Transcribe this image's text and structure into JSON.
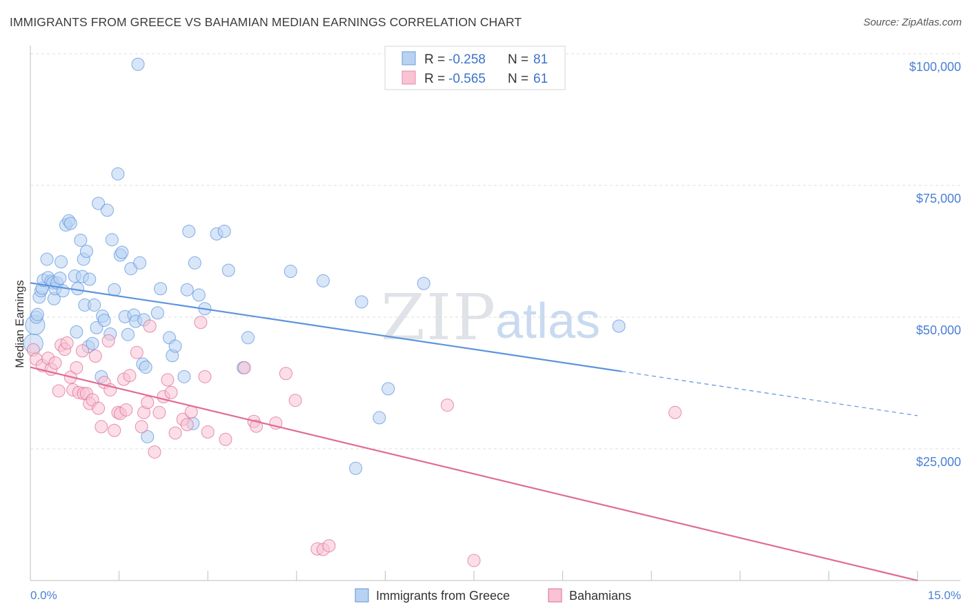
{
  "header": {
    "title": "IMMIGRANTS FROM GREECE VS BAHAMIAN MEDIAN EARNINGS CORRELATION CHART",
    "source": "Source: ZipAtlas.com"
  },
  "watermark": {
    "part1": "ZIP",
    "part2": "atlas"
  },
  "legend": {
    "r_label": "R =",
    "n_label": "N =",
    "rows": [
      {
        "r": "-0.258",
        "n": "81",
        "fill": "#b8d2f2",
        "stroke": "#6a9ee0"
      },
      {
        "r": "-0.565",
        "n": "61",
        "fill": "#f8c3d3",
        "stroke": "#e98aa8"
      }
    ]
  },
  "chart_data": {
    "type": "scatter",
    "title": "IMMIGRANTS FROM GREECE VS BAHAMIAN MEDIAN EARNINGS CORRELATION CHART",
    "xlabel": "",
    "ylabel": "Median Earnings",
    "xlim": [
      0,
      15
    ],
    "ylim": [
      0,
      105000
    ],
    "x_tick_labels": [
      "0.0%",
      "15.0%"
    ],
    "y_ticks": [
      {
        "value": 25000,
        "label": "$25,000"
      },
      {
        "value": 50000,
        "label": "$50,000"
      },
      {
        "value": 75000,
        "label": "$75,000"
      },
      {
        "value": 100000,
        "label": "$100,000"
      }
    ],
    "grid": true,
    "legend_position": "top-center",
    "series": [
      {
        "name": "Immigrants from Greece",
        "color": "#5b93dd",
        "fill": "#b8d2f2",
        "trend": {
          "x0": 0.0,
          "y0": 56500,
          "x1": 10.0,
          "y1": 39700,
          "dash_to_x": 15.0,
          "dash_to_y": 31300
        },
        "points": [
          [
            0.05,
            45000
          ],
          [
            0.08,
            48500
          ],
          [
            0.1,
            50000
          ],
          [
            0.12,
            50500
          ],
          [
            0.15,
            53800
          ],
          [
            0.18,
            55000
          ],
          [
            0.2,
            55500
          ],
          [
            0.22,
            57000
          ],
          [
            0.28,
            61000
          ],
          [
            0.3,
            57500
          ],
          [
            0.35,
            56800
          ],
          [
            0.38,
            56500
          ],
          [
            0.4,
            53500
          ],
          [
            0.42,
            55400
          ],
          [
            0.45,
            56500
          ],
          [
            0.5,
            57400
          ],
          [
            0.52,
            60500
          ],
          [
            0.55,
            55000
          ],
          [
            0.6,
            67500
          ],
          [
            0.65,
            68300
          ],
          [
            0.68,
            67800
          ],
          [
            0.75,
            57800
          ],
          [
            0.78,
            47200
          ],
          [
            0.8,
            55400
          ],
          [
            0.85,
            64600
          ],
          [
            0.88,
            57700
          ],
          [
            0.9,
            61000
          ],
          [
            0.92,
            52300
          ],
          [
            0.95,
            62500
          ],
          [
            0.98,
            44400
          ],
          [
            1.0,
            57200
          ],
          [
            1.05,
            45000
          ],
          [
            1.08,
            52300
          ],
          [
            1.12,
            48000
          ],
          [
            1.15,
            71600
          ],
          [
            1.2,
            38700
          ],
          [
            1.22,
            50200
          ],
          [
            1.25,
            49400
          ],
          [
            1.3,
            70300
          ],
          [
            1.35,
            46800
          ],
          [
            1.38,
            64700
          ],
          [
            1.42,
            55200
          ],
          [
            1.48,
            77200
          ],
          [
            1.52,
            61800
          ],
          [
            1.55,
            62300
          ],
          [
            1.6,
            50100
          ],
          [
            1.65,
            46700
          ],
          [
            1.7,
            59200
          ],
          [
            1.75,
            50400
          ],
          [
            1.78,
            49200
          ],
          [
            1.82,
            98000
          ],
          [
            1.85,
            60300
          ],
          [
            1.9,
            41100
          ],
          [
            1.92,
            49500
          ],
          [
            1.95,
            40500
          ],
          [
            1.98,
            27300
          ],
          [
            2.15,
            50800
          ],
          [
            2.2,
            55400
          ],
          [
            2.35,
            46100
          ],
          [
            2.4,
            42700
          ],
          [
            2.45,
            44500
          ],
          [
            2.6,
            38700
          ],
          [
            2.65,
            55200
          ],
          [
            2.68,
            66300
          ],
          [
            2.75,
            29800
          ],
          [
            2.78,
            60300
          ],
          [
            2.85,
            54200
          ],
          [
            2.95,
            51600
          ],
          [
            3.15,
            65800
          ],
          [
            3.28,
            66300
          ],
          [
            3.35,
            58900
          ],
          [
            3.6,
            40400
          ],
          [
            3.68,
            46100
          ],
          [
            4.4,
            58700
          ],
          [
            4.95,
            56900
          ],
          [
            5.5,
            21300
          ],
          [
            5.6,
            52900
          ],
          [
            6.05,
            36400
          ],
          [
            5.9,
            30900
          ],
          [
            6.65,
            56400
          ],
          [
            9.95,
            48300
          ]
        ]
      },
      {
        "name": "Bahamians",
        "color": "#e06b93",
        "fill": "#f8c3d3",
        "trend": {
          "x0": 0.0,
          "y0": 40500,
          "x1": 15.0,
          "y1": 0
        },
        "points": [
          [
            0.05,
            43800
          ],
          [
            0.1,
            42000
          ],
          [
            0.2,
            40800
          ],
          [
            0.3,
            42200
          ],
          [
            0.35,
            40100
          ],
          [
            0.42,
            41300
          ],
          [
            0.48,
            36000
          ],
          [
            0.52,
            44700
          ],
          [
            0.58,
            43900
          ],
          [
            0.62,
            45100
          ],
          [
            0.68,
            38600
          ],
          [
            0.72,
            36200
          ],
          [
            0.78,
            40400
          ],
          [
            0.82,
            35700
          ],
          [
            0.88,
            43600
          ],
          [
            0.9,
            35500
          ],
          [
            0.95,
            35500
          ],
          [
            1.0,
            33600
          ],
          [
            1.05,
            34300
          ],
          [
            1.1,
            42600
          ],
          [
            1.15,
            32700
          ],
          [
            1.2,
            29200
          ],
          [
            1.25,
            37600
          ],
          [
            1.32,
            45500
          ],
          [
            1.35,
            36200
          ],
          [
            1.42,
            28500
          ],
          [
            1.48,
            31900
          ],
          [
            1.52,
            31700
          ],
          [
            1.58,
            38200
          ],
          [
            1.62,
            32400
          ],
          [
            1.68,
            38900
          ],
          [
            1.8,
            43300
          ],
          [
            1.88,
            29200
          ],
          [
            1.92,
            31900
          ],
          [
            1.98,
            33800
          ],
          [
            2.02,
            48300
          ],
          [
            2.1,
            24400
          ],
          [
            2.18,
            31900
          ],
          [
            2.25,
            34900
          ],
          [
            2.32,
            38100
          ],
          [
            2.38,
            35700
          ],
          [
            2.45,
            28000
          ],
          [
            2.58,
            30600
          ],
          [
            2.65,
            29600
          ],
          [
            2.72,
            32000
          ],
          [
            2.88,
            49000
          ],
          [
            2.95,
            38700
          ],
          [
            3.0,
            28200
          ],
          [
            3.3,
            26800
          ],
          [
            3.62,
            40400
          ],
          [
            3.78,
            30200
          ],
          [
            3.82,
            29300
          ],
          [
            4.15,
            29900
          ],
          [
            4.32,
            39300
          ],
          [
            4.48,
            34200
          ],
          [
            4.85,
            6000
          ],
          [
            4.95,
            5900
          ],
          [
            5.05,
            6600
          ],
          [
            7.05,
            33300
          ],
          [
            7.5,
            3800
          ],
          [
            10.9,
            31900
          ]
        ]
      }
    ]
  },
  "bottom_legend": {
    "items": [
      {
        "label": "Immigrants from Greece"
      },
      {
        "label": "Bahamians"
      }
    ]
  }
}
